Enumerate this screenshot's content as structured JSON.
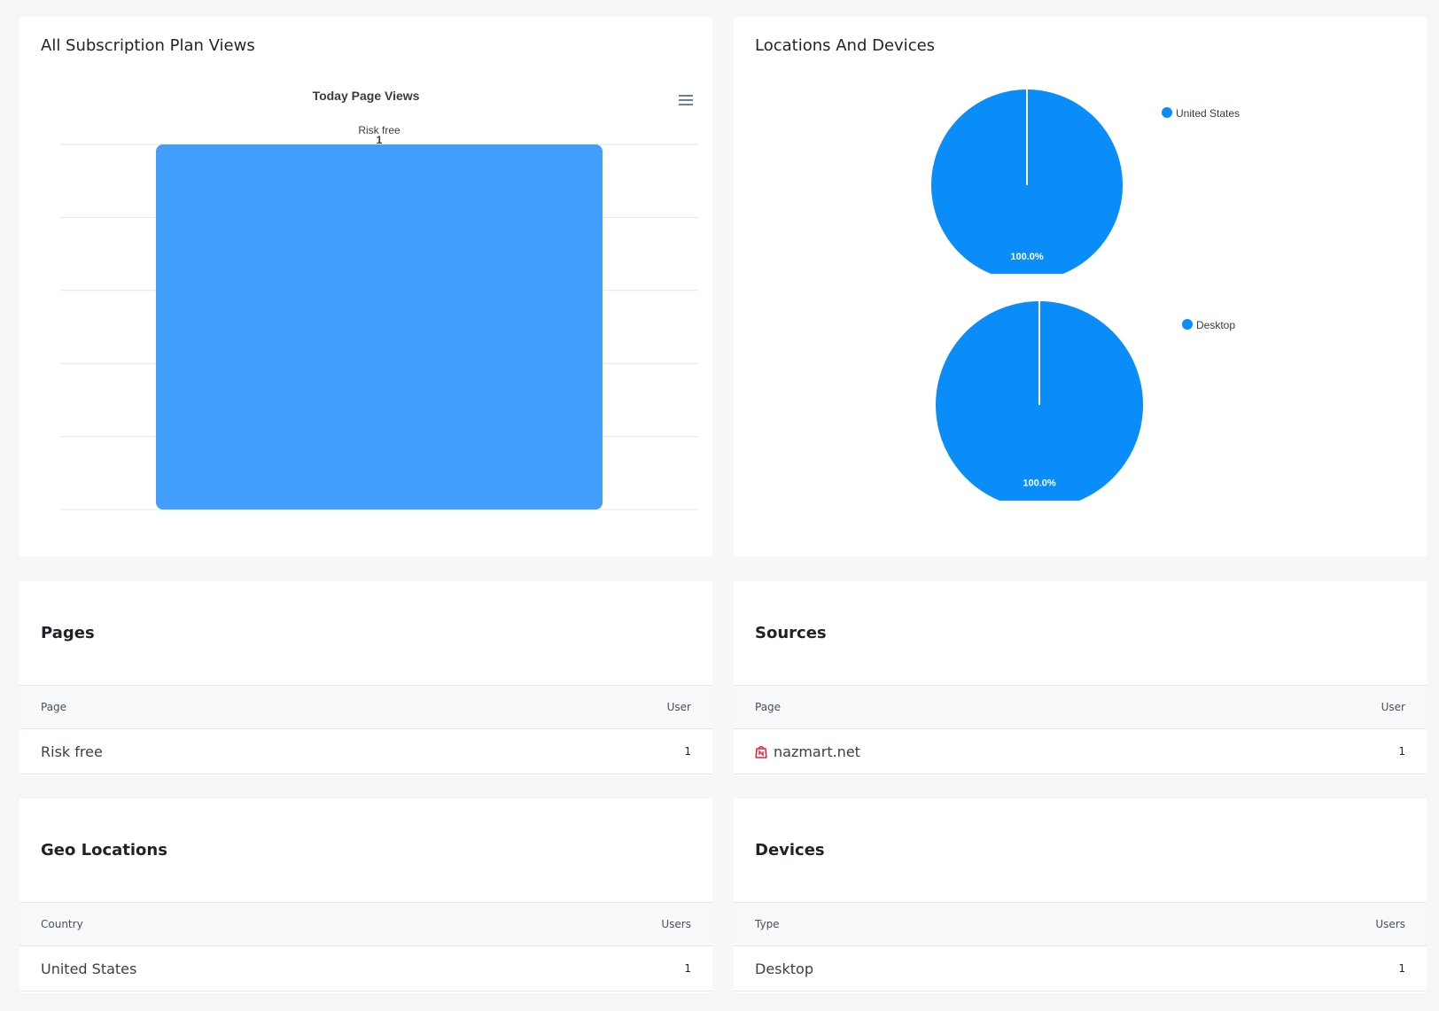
{
  "subscription_card": {
    "title": "All Subscription Plan Views",
    "menu_icon": "hamburger-menu-icon"
  },
  "locations_card": {
    "title": "Locations And Devices"
  },
  "chart_data": [
    {
      "type": "bar",
      "title": "Today Page Views",
      "categories": [
        "Risk free"
      ],
      "values": [
        1
      ],
      "ylim": [
        0,
        1
      ],
      "grid": true,
      "color": "#3d9cfc"
    },
    {
      "type": "pie",
      "labels": [
        "United States"
      ],
      "values": [
        100.0
      ],
      "data_labels": [
        "100.0%"
      ],
      "legend": "right",
      "color": "#0a8cf9"
    },
    {
      "type": "pie",
      "labels": [
        "Desktop"
      ],
      "values": [
        100.0
      ],
      "data_labels": [
        "100.0%"
      ],
      "legend": "right",
      "color": "#0a8cf9"
    }
  ],
  "pages_card": {
    "title": "Pages",
    "columns": [
      "Page",
      "User"
    ],
    "rows": [
      {
        "name": "Risk free",
        "value": "1"
      }
    ]
  },
  "sources_card": {
    "title": "Sources",
    "columns": [
      "Page",
      "User"
    ],
    "rows": [
      {
        "name": "nazmart.net",
        "value": "1",
        "icon": "shopping-bag-logo-icon"
      }
    ]
  },
  "geo_card": {
    "title": "Geo Locations",
    "columns": [
      "Country",
      "Users"
    ],
    "rows": [
      {
        "name": "United States",
        "value": "1"
      }
    ]
  },
  "devices_card": {
    "title": "Devices",
    "columns": [
      "Type",
      "Users"
    ],
    "rows": [
      {
        "name": "Desktop",
        "value": "1"
      }
    ]
  }
}
